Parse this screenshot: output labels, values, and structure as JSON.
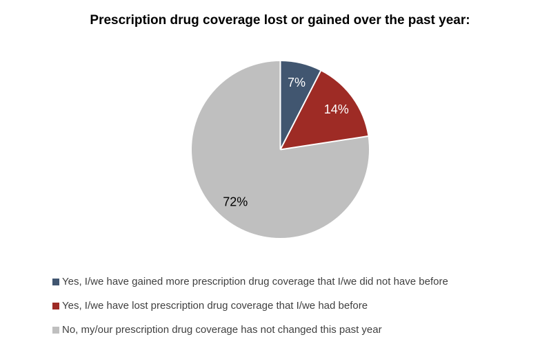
{
  "title": "Prescription drug coverage lost or gained over the past year:",
  "chart_data": {
    "type": "pie",
    "title": "Prescription drug coverage lost or gained over the past year:",
    "legend_position": "bottom-left",
    "start_angle_deg": -90,
    "direction": "clockwise",
    "slices": [
      {
        "label": "Yes, I/we have gained more prescription drug coverage that I/we did not have before",
        "value": 7,
        "display": "7%",
        "color": "#415670",
        "label_color": "#FFFFFF"
      },
      {
        "label": "Yes, I/we have lost prescription drug coverage that I/we had before",
        "value": 14,
        "display": "14%",
        "color": "#9E2B25",
        "label_color": "#FFFFFF"
      },
      {
        "label": "No, my/our prescription drug coverage has not changed this past year",
        "value": 72,
        "display": "72%",
        "color": "#BFBFBF",
        "label_color": "#000000"
      }
    ]
  }
}
